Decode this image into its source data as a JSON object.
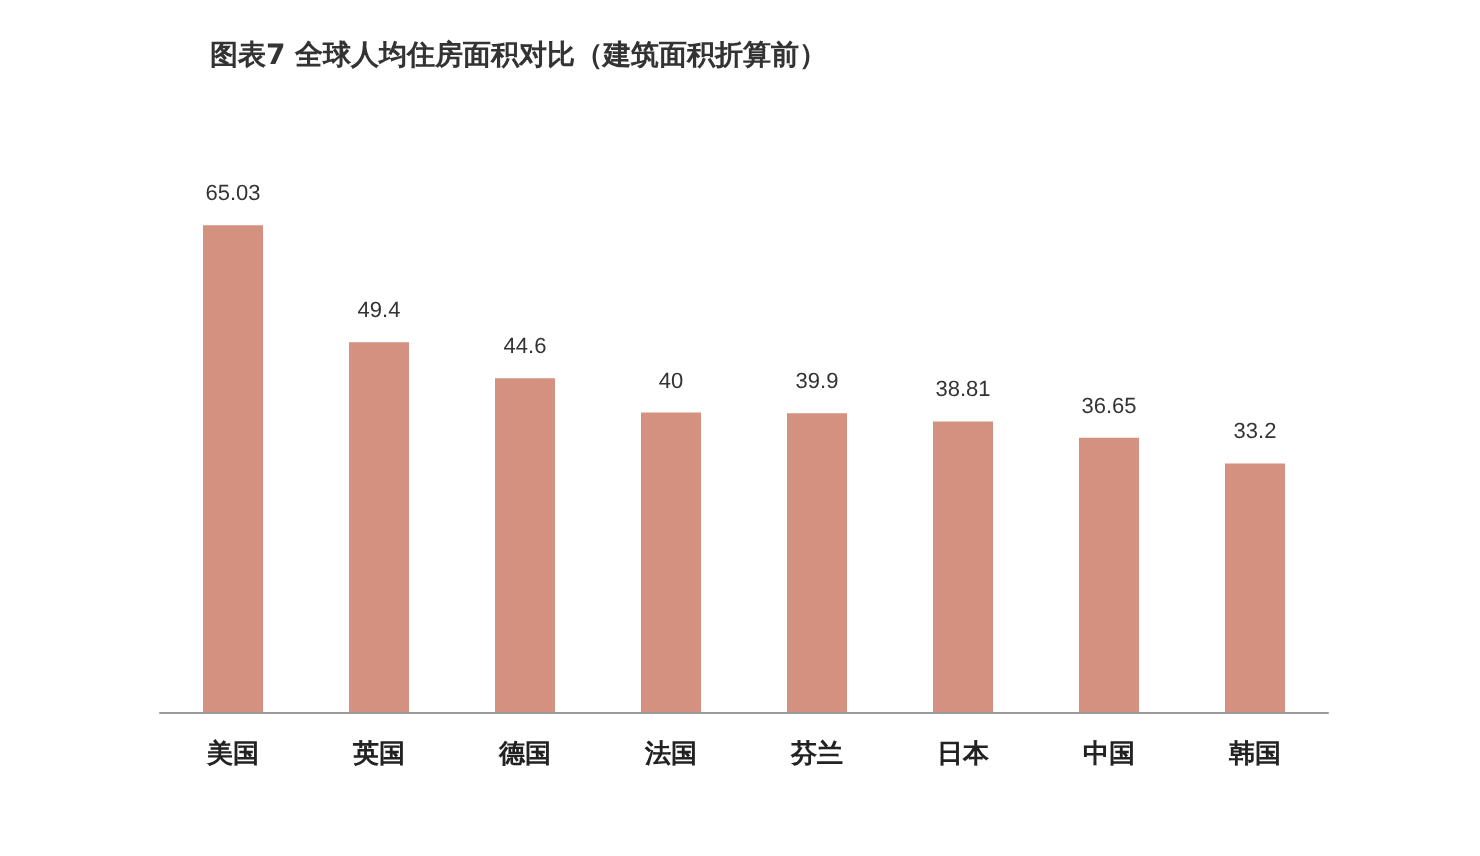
{
  "chart_data": {
    "type": "bar",
    "title": "图表7 全球人均住房面积对比（建筑面积折算前）",
    "categories": [
      "美国",
      "英国",
      "德国",
      "法国",
      "芬兰",
      "日本",
      "中国",
      "韩国"
    ],
    "values": [
      65.03,
      49.4,
      44.6,
      40,
      39.9,
      38.81,
      36.65,
      33.2
    ],
    "color": "#d4917f",
    "data_labels": true,
    "tick_labels": "x"
  }
}
